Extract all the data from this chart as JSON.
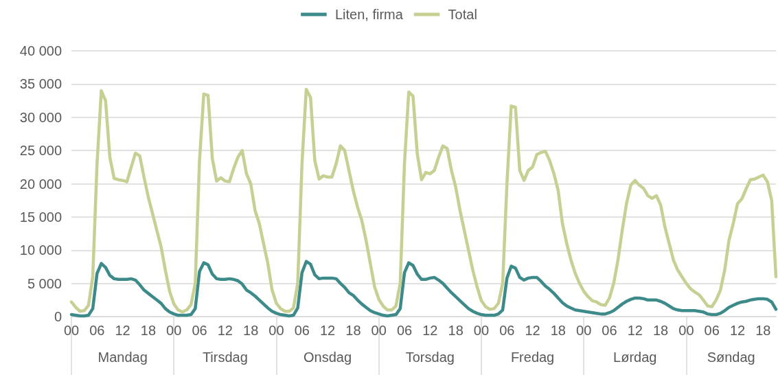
{
  "chart_data": {
    "type": "line",
    "categories": [
      "00",
      null,
      null,
      null,
      null,
      null,
      "06",
      null,
      null,
      null,
      null,
      null,
      "12",
      null,
      null,
      null,
      null,
      null,
      "18",
      null,
      null,
      null,
      null,
      null,
      "00",
      null,
      null,
      null,
      null,
      null,
      "06",
      null,
      null,
      null,
      null,
      null,
      "12",
      null,
      null,
      null,
      null,
      null,
      "18",
      null,
      null,
      null,
      null,
      null,
      "00",
      null,
      null,
      null,
      null,
      null,
      "06",
      null,
      null,
      null,
      null,
      null,
      "12",
      null,
      null,
      null,
      null,
      null,
      "18",
      null,
      null,
      null,
      null,
      null,
      "00",
      null,
      null,
      null,
      null,
      null,
      "06",
      null,
      null,
      null,
      null,
      null,
      "12",
      null,
      null,
      null,
      null,
      null,
      "18",
      null,
      null,
      null,
      null,
      null,
      "00",
      null,
      null,
      null,
      null,
      null,
      "06",
      null,
      null,
      null,
      null,
      null,
      "12",
      null,
      null,
      null,
      null,
      null,
      "18",
      null,
      null,
      null,
      null,
      null,
      "00",
      null,
      null,
      null,
      null,
      null,
      "06",
      null,
      null,
      null,
      null,
      null,
      "12",
      null,
      null,
      null,
      null,
      null,
      "18",
      null,
      null,
      null,
      null,
      null,
      "00",
      null,
      null,
      null,
      null,
      null,
      "06",
      null,
      null,
      null,
      null,
      null,
      "12",
      null,
      null,
      null,
      null,
      null,
      "18",
      null,
      null,
      null
    ],
    "series": [
      {
        "name": "Liten, firma",
        "color": "#3d8a8a",
        "values": [
          300,
          200,
          100,
          100,
          200,
          1200,
          6500,
          8000,
          7400,
          6200,
          5700,
          5600,
          5600,
          5600,
          5700,
          5500,
          4800,
          4000,
          3500,
          3000,
          2500,
          2000,
          1200,
          700,
          400,
          200,
          200,
          200,
          300,
          1200,
          6800,
          8100,
          7800,
          6400,
          5700,
          5600,
          5600,
          5700,
          5600,
          5400,
          4900,
          4000,
          3600,
          3100,
          2500,
          1900,
          1300,
          800,
          500,
          300,
          200,
          100,
          200,
          1300,
          6600,
          8300,
          7900,
          6300,
          5700,
          5800,
          5800,
          5800,
          5700,
          5000,
          4400,
          3600,
          3200,
          2500,
          1900,
          1400,
          900,
          600,
          400,
          200,
          100,
          200,
          300,
          1200,
          6600,
          8100,
          7700,
          6400,
          5600,
          5600,
          5800,
          5900,
          5500,
          5000,
          4300,
          3600,
          3000,
          2400,
          1800,
          1200,
          800,
          500,
          300,
          200,
          200,
          200,
          400,
          1000,
          5800,
          7600,
          7300,
          5900,
          5500,
          5800,
          5900,
          5900,
          5300,
          4600,
          4100,
          3500,
          2800,
          2100,
          1600,
          1300,
          1000,
          900,
          800,
          700,
          600,
          500,
          400,
          400,
          600,
          900,
          1400,
          1900,
          2300,
          2600,
          2800,
          2800,
          2700,
          2500,
          2500,
          2500,
          2300,
          2000,
          1600,
          1200,
          1000,
          900,
          900,
          900,
          900,
          800,
          700,
          400,
          300,
          300,
          500,
          900,
          1400,
          1700,
          2000,
          2200,
          2300,
          2500,
          2600,
          2700,
          2700,
          2600,
          2200,
          1100
        ]
      },
      {
        "name": "Total",
        "color": "#c7cf92",
        "values": [
          2200,
          1400,
          800,
          900,
          1700,
          6000,
          23000,
          34000,
          32500,
          24000,
          20800,
          20600,
          20500,
          20300,
          22500,
          24600,
          24200,
          21000,
          18000,
          15500,
          13000,
          10500,
          7000,
          3800,
          1900,
          1000,
          700,
          1000,
          1800,
          5000,
          23500,
          33500,
          33300,
          23800,
          20400,
          20900,
          20400,
          20300,
          22300,
          24000,
          25000,
          21500,
          20000,
          16000,
          14000,
          11000,
          8000,
          4000,
          2000,
          1200,
          800,
          800,
          1300,
          5000,
          23000,
          34200,
          33000,
          23500,
          20700,
          21200,
          21000,
          21000,
          23000,
          25700,
          25000,
          22000,
          19000,
          16500,
          14500,
          11500,
          8000,
          4500,
          2600,
          1600,
          1000,
          1000,
          1600,
          5000,
          23000,
          33800,
          33200,
          24500,
          20600,
          21700,
          21500,
          22000,
          24000,
          25700,
          25300,
          22000,
          19500,
          16000,
          13000,
          10000,
          7000,
          4500,
          2400,
          1500,
          1100,
          1200,
          2000,
          5000,
          20000,
          31700,
          31500,
          22000,
          20500,
          22000,
          22500,
          24400,
          24700,
          24900,
          23500,
          21500,
          19000,
          14000,
          11000,
          8500,
          6500,
          5000,
          3800,
          3000,
          2400,
          2200,
          1800,
          1700,
          2800,
          5000,
          8500,
          13000,
          17000,
          19800,
          20500,
          19800,
          19300,
          18200,
          17800,
          18200,
          16800,
          13500,
          11000,
          8500,
          7000,
          6000,
          5000,
          4200,
          3700,
          3300,
          2500,
          1600,
          1500,
          2500,
          4000,
          7000,
          11500,
          14000,
          17000,
          17700,
          19200,
          20600,
          20700,
          21000,
          21300,
          20300,
          17500,
          6000
        ]
      }
    ],
    "annotations": [
      "Mandag",
      "Tirsdag",
      "Onsdag",
      "Torsdag",
      "Fredag",
      "Lørdag",
      "Søndag"
    ],
    "ylim": [
      0,
      40000
    ],
    "yticks": [
      {
        "value": 0,
        "label": "0"
      },
      {
        "value": 5000,
        "label": "5 000"
      },
      {
        "value": 10000,
        "label": "10 000"
      },
      {
        "value": 15000,
        "label": "15 000"
      },
      {
        "value": 20000,
        "label": "20 000"
      },
      {
        "value": 25000,
        "label": "25 000"
      },
      {
        "value": 30000,
        "label": "30 000"
      },
      {
        "value": 35000,
        "label": "35 000"
      },
      {
        "value": 40000,
        "label": "40 000"
      }
    ],
    "grid": "y",
    "legend": "top",
    "marker": "none",
    "line_style": "solid"
  }
}
